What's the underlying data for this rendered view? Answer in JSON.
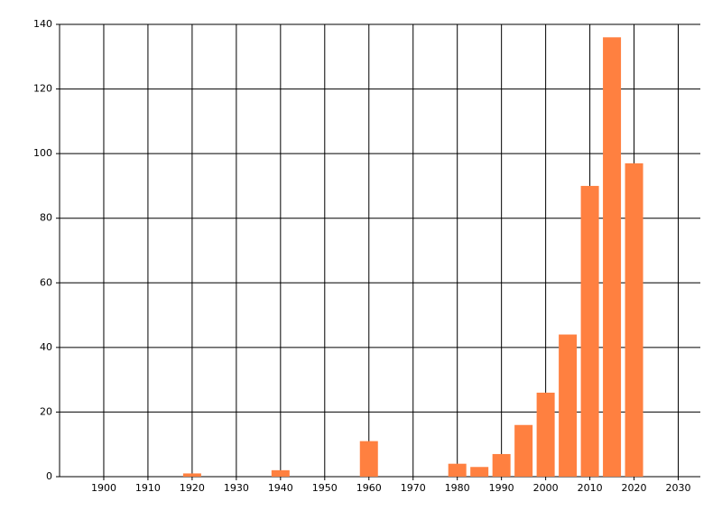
{
  "chart_data": {
    "type": "bar",
    "x": [
      1920,
      1940,
      1960,
      1980,
      1985,
      1990,
      1995,
      2000,
      2005,
      2010,
      2015,
      2020
    ],
    "values": [
      1,
      2,
      11,
      4,
      3,
      7,
      16,
      26,
      44,
      90,
      136,
      97
    ],
    "color": "#ff8040",
    "xlim": [
      1890,
      2035
    ],
    "xticks": [
      1900,
      1910,
      1920,
      1930,
      1940,
      1950,
      1960,
      1970,
      1980,
      1990,
      2000,
      2010,
      2020,
      2030
    ],
    "ylim": [
      0,
      140
    ],
    "yticks": [
      0,
      20,
      40,
      60,
      80,
      100,
      120,
      140
    ],
    "grid": true
  }
}
